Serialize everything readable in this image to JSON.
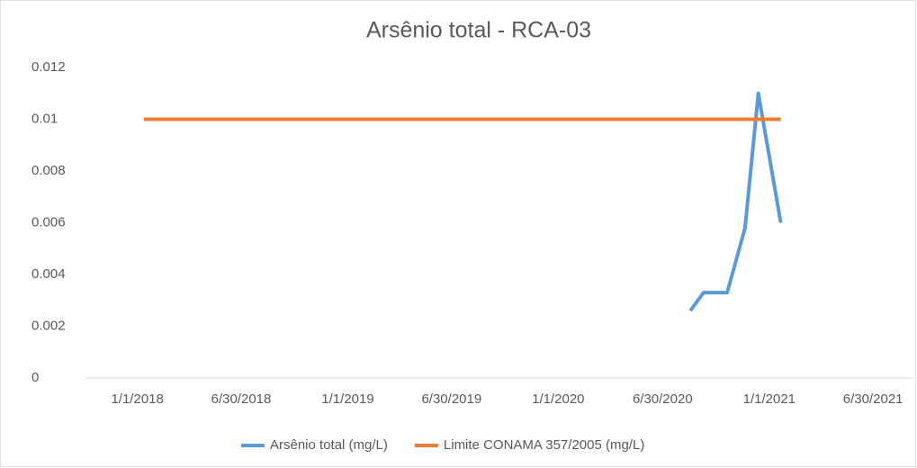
{
  "chart_data": {
    "type": "line",
    "title": "Arsênio total - RCA-03",
    "xlim": [
      "2017-10-03",
      "2021-09-08"
    ],
    "xticks": [
      {
        "value": "2018-01-01",
        "label": "1/1/2018"
      },
      {
        "value": "2018-06-30",
        "label": "6/30/2018"
      },
      {
        "value": "2019-01-01",
        "label": "1/1/2019"
      },
      {
        "value": "2019-06-30",
        "label": "6/30/2019"
      },
      {
        "value": "2020-01-01",
        "label": "1/1/2020"
      },
      {
        "value": "2020-06-30",
        "label": "6/30/2020"
      },
      {
        "value": "2021-01-01",
        "label": "1/1/2021"
      },
      {
        "value": "2021-06-30",
        "label": "6/30/2021"
      }
    ],
    "ylim": [
      0,
      0.012
    ],
    "yticks": [
      0,
      0.002,
      0.004,
      0.006,
      0.008,
      0.01,
      0.012
    ],
    "grid": false,
    "legend": "bottom",
    "series": [
      {
        "name": "Arsênio total (mg/L)",
        "color": "#5b9bd5",
        "x": [
          "2020-08-17",
          "2020-09-09",
          "2020-10-20",
          "2020-11-20",
          "2020-12-13",
          "2021-01-21"
        ],
        "values": [
          0.0026,
          0.0033,
          0.0033,
          0.0058,
          0.011,
          0.006
        ]
      },
      {
        "name": "Limite CONAMA 357/2005 (mg/L)",
        "color": "#ed7d31",
        "x": [
          "2018-01-12",
          "2021-01-21"
        ],
        "values": [
          0.01,
          0.01
        ]
      }
    ]
  }
}
